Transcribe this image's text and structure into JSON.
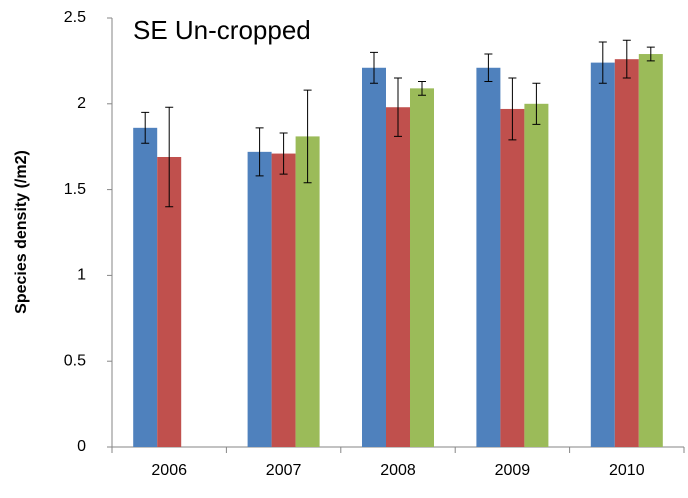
{
  "chart_data": {
    "type": "bar",
    "title": "SE Un-cropped",
    "y_label": "Species density (/m2)",
    "categories": [
      "2006",
      "2007",
      "2008",
      "2009",
      "2010"
    ],
    "series": [
      {
        "color": "#4f81bd",
        "values": [
          1.86,
          1.72,
          2.21,
          2.21,
          2.24
        ],
        "errors": [
          0.09,
          0.14,
          0.09,
          0.08,
          0.12
        ]
      },
      {
        "color": "#c0504d",
        "values": [
          1.69,
          1.71,
          1.98,
          1.97,
          2.26
        ],
        "errors": [
          0.29,
          0.12,
          0.17,
          0.18,
          0.11
        ]
      },
      {
        "color": "#9bbb59",
        "values": [
          null,
          1.81,
          2.09,
          2.0,
          2.29
        ],
        "errors": [
          null,
          0.27,
          0.04,
          0.12,
          0.04
        ]
      }
    ],
    "ylim": [
      0,
      2.5
    ],
    "yticks": [
      0,
      0.5,
      1,
      1.5,
      2,
      2.5
    ],
    "grid": false
  }
}
